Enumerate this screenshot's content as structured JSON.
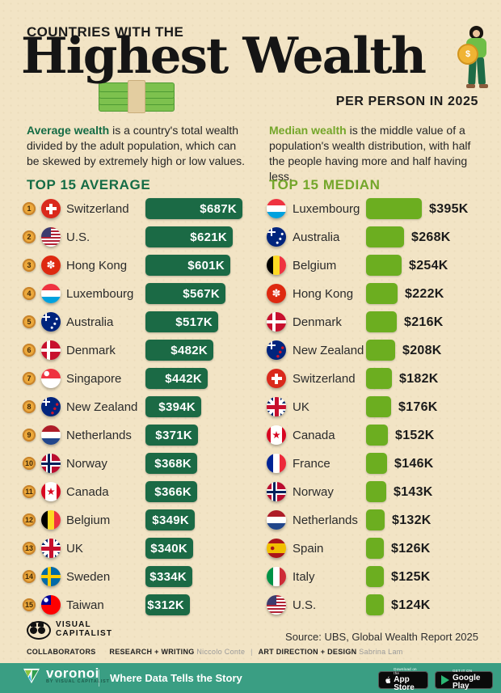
{
  "header": {
    "kicker": "COUNTRIES WITH THE",
    "title": "Highest Wealth",
    "subtitle": "PER PERSON IN 2025"
  },
  "intro": {
    "average": {
      "lead": "Average wealth",
      "rest": " is a country's total wealth divided by the adult population, which can be skewed by extremely high or low values."
    },
    "median": {
      "lead": "Median wealth",
      "rest": " is the middle value of a population's wealth distribution, with half the people having more and half having less."
    }
  },
  "columns": {
    "average": {
      "heading": "TOP 15 AVERAGE",
      "rows": [
        {
          "rank": "1",
          "country": "Switzerland",
          "flag": "switzerland",
          "value": 687,
          "label": "$687K"
        },
        {
          "rank": "2",
          "country": "U.S.",
          "flag": "us",
          "value": 621,
          "label": "$621K"
        },
        {
          "rank": "3",
          "country": "Hong Kong",
          "flag": "hongkong",
          "value": 601,
          "label": "$601K"
        },
        {
          "rank": "4",
          "country": "Luxembourg",
          "flag": "luxembourg",
          "value": 567,
          "label": "$567K"
        },
        {
          "rank": "5",
          "country": "Australia",
          "flag": "australia",
          "value": 517,
          "label": "$517K"
        },
        {
          "rank": "6",
          "country": "Denmark",
          "flag": "denmark",
          "value": 482,
          "label": "$482K"
        },
        {
          "rank": "7",
          "country": "Singapore",
          "flag": "singapore",
          "value": 442,
          "label": "$442K"
        },
        {
          "rank": "8",
          "country": "New Zealand",
          "flag": "newzealand",
          "value": 394,
          "label": "$394K"
        },
        {
          "rank": "9",
          "country": "Netherlands",
          "flag": "netherlands",
          "value": 371,
          "label": "$371K"
        },
        {
          "rank": "10",
          "country": "Norway",
          "flag": "norway",
          "value": 368,
          "label": "$368K"
        },
        {
          "rank": "11",
          "country": "Canada",
          "flag": "canada",
          "value": 366,
          "label": "$366K"
        },
        {
          "rank": "12",
          "country": "Belgium",
          "flag": "belgium",
          "value": 349,
          "label": "$349K"
        },
        {
          "rank": "13",
          "country": "UK",
          "flag": "uk",
          "value": 340,
          "label": "$340K"
        },
        {
          "rank": "14",
          "country": "Sweden",
          "flag": "sweden",
          "value": 334,
          "label": "$334K"
        },
        {
          "rank": "15",
          "country": "Taiwan",
          "flag": "taiwan",
          "value": 312,
          "label": "$312K"
        }
      ]
    },
    "median": {
      "heading": "TOP 15 MEDIAN",
      "rows": [
        {
          "country": "Luxembourg",
          "flag": "luxembourg",
          "value": 395,
          "label": "$395K"
        },
        {
          "country": "Australia",
          "flag": "australia",
          "value": 268,
          "label": "$268K"
        },
        {
          "country": "Belgium",
          "flag": "belgium",
          "value": 254,
          "label": "$254K"
        },
        {
          "country": "Hong Kong",
          "flag": "hongkong",
          "value": 222,
          "label": "$222K"
        },
        {
          "country": "Denmark",
          "flag": "denmark",
          "value": 216,
          "label": "$216K"
        },
        {
          "country": "New Zealand",
          "flag": "newzealand",
          "value": 208,
          "label": "$208K"
        },
        {
          "country": "Switzerland",
          "flag": "switzerland",
          "value": 182,
          "label": "$182K"
        },
        {
          "country": "UK",
          "flag": "uk",
          "value": 176,
          "label": "$176K"
        },
        {
          "country": "Canada",
          "flag": "canada",
          "value": 152,
          "label": "$152K"
        },
        {
          "country": "France",
          "flag": "france",
          "value": 146,
          "label": "$146K"
        },
        {
          "country": "Norway",
          "flag": "norway",
          "value": 143,
          "label": "$143K"
        },
        {
          "country": "Netherlands",
          "flag": "netherlands",
          "value": 132,
          "label": "$132K"
        },
        {
          "country": "Spain",
          "flag": "spain",
          "value": 126,
          "label": "$126K"
        },
        {
          "country": "Italy",
          "flag": "italy",
          "value": 125,
          "label": "$125K"
        },
        {
          "country": "U.S.",
          "flag": "us",
          "value": 124,
          "label": "$124K"
        }
      ]
    }
  },
  "chart_data": [
    {
      "type": "bar",
      "orientation": "horizontal",
      "title": "TOP 15 AVERAGE",
      "categories": [
        "Switzerland",
        "U.S.",
        "Hong Kong",
        "Luxembourg",
        "Australia",
        "Denmark",
        "Singapore",
        "New Zealand",
        "Netherlands",
        "Norway",
        "Canada",
        "Belgium",
        "UK",
        "Sweden",
        "Taiwan"
      ],
      "values": [
        687,
        621,
        601,
        567,
        517,
        482,
        442,
        394,
        371,
        368,
        366,
        349,
        340,
        334,
        312
      ],
      "value_labels": [
        "$687K",
        "$621K",
        "$601K",
        "$567K",
        "$517K",
        "$482K",
        "$442K",
        "$394K",
        "$371K",
        "$368K",
        "$366K",
        "$349K",
        "$340K",
        "$334K",
        "$312K"
      ],
      "unit": "USD thousands per person",
      "bar_color": "#1B6A45"
    },
    {
      "type": "bar",
      "orientation": "horizontal",
      "title": "TOP 15 MEDIAN",
      "categories": [
        "Luxembourg",
        "Australia",
        "Belgium",
        "Hong Kong",
        "Denmark",
        "New Zealand",
        "Switzerland",
        "UK",
        "Canada",
        "France",
        "Norway",
        "Netherlands",
        "Spain",
        "Italy",
        "U.S."
      ],
      "values": [
        395,
        268,
        254,
        222,
        216,
        208,
        182,
        176,
        152,
        146,
        143,
        132,
        126,
        125,
        124
      ],
      "value_labels": [
        "$395K",
        "$268K",
        "$254K",
        "$222K",
        "$216K",
        "$208K",
        "$182K",
        "$176K",
        "$152K",
        "$146K",
        "$143K",
        "$132K",
        "$126K",
        "$125K",
        "$124K"
      ],
      "unit": "USD thousands per person",
      "bar_color": "#6CAE20"
    }
  ],
  "footer": {
    "brand_line1": "VISUAL",
    "brand_line2": "CAPITALIST",
    "source": "Source: UBS, Global Wealth Report 2025",
    "collaborators": {
      "label": "COLLABORATORS",
      "research_label": "RESEARCH + WRITING",
      "research_name": "Niccolo Conte",
      "sep": "|",
      "design_label": "ART DIRECTION + DESIGN",
      "design_name": "Sabrina Lam"
    },
    "voronoi": {
      "name": "voronoi",
      "sub": "BY VISUAL CAPITALIST",
      "tagline": "Where Data Tells the Story"
    },
    "badges": {
      "appstore": {
        "line1": "Download on the",
        "line2": "App Store"
      },
      "googleplay": {
        "line1": "GET IT ON",
        "line2": "Google Play"
      }
    }
  },
  "colors": {
    "background": "#F2E4C5",
    "average_green": "#1B6A45",
    "median_green": "#6CAE20",
    "median_heading": "#74A62A",
    "coin_gold": "#ECA93C",
    "footer_teal": "#3A9E83"
  }
}
